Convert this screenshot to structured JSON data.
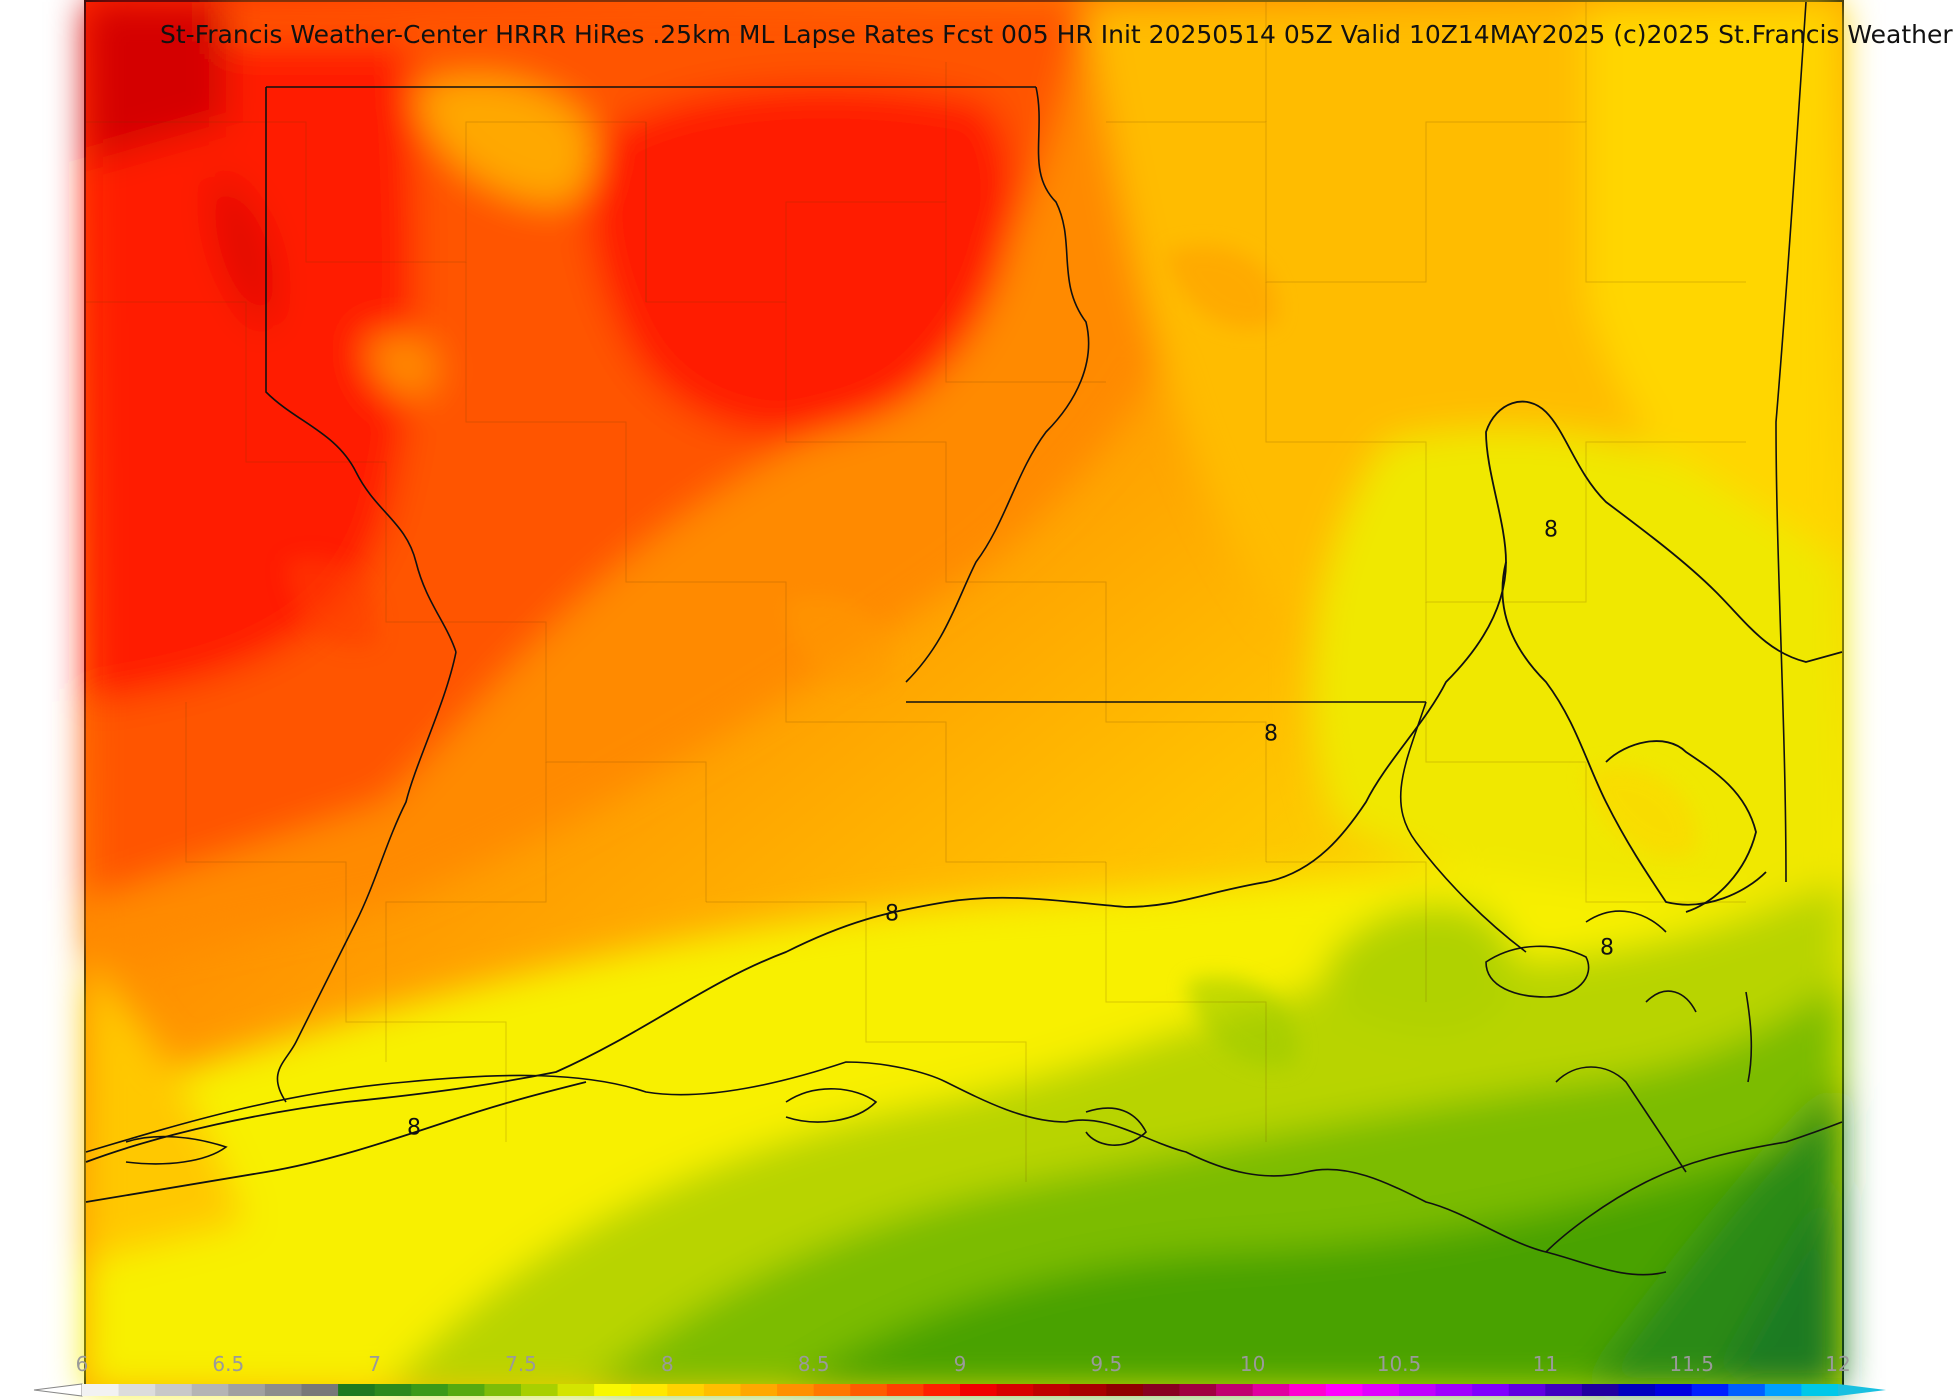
{
  "title": "St-Francis Weather-Center HRRR HiRes .25km ML Lapse Rates  Fcst 005 HR Init 20250514 05Z  Valid 10Z14MAY2025    (c)2025 St.Francis Weather",
  "contour_labels": [
    "8",
    "8",
    "8",
    "8",
    "8"
  ],
  "colorbar": {
    "min": 6,
    "max": 12,
    "ticks": [
      "6",
      "6.5",
      "7",
      "7.5",
      "8",
      "8.5",
      "9",
      "9.5",
      "10",
      "10.5",
      "11",
      "11.5",
      "12"
    ],
    "colors": [
      "#f2f2f2",
      "#dcdcdc",
      "#c8c8c8",
      "#b4b4b4",
      "#a0a0a0",
      "#8c8c8c",
      "#787878",
      "#1f7a1f",
      "#2c8a1c",
      "#3a9a18",
      "#55aa10",
      "#7dbd08",
      "#a8d000",
      "#d4e400",
      "#f8f800",
      "#ffe800",
      "#ffd200",
      "#ffbe00",
      "#ffa800",
      "#ff9000",
      "#ff7800",
      "#ff5c00",
      "#ff4000",
      "#ff2000",
      "#f00000",
      "#d80000",
      "#c00000",
      "#a80000",
      "#900000",
      "#880020",
      "#a00040",
      "#c00070",
      "#e000a0",
      "#ff00d0",
      "#ff00ff",
      "#e000ff",
      "#c000ff",
      "#a000ff",
      "#8000ff",
      "#6000e0",
      "#4000c0",
      "#2000a0",
      "#0000c0",
      "#0000e0",
      "#0020ff",
      "#0060ff",
      "#00a0ff",
      "#00c8e8"
    ]
  },
  "map": {
    "field": "ML Lapse Rates",
    "contour_value": 8
  }
}
